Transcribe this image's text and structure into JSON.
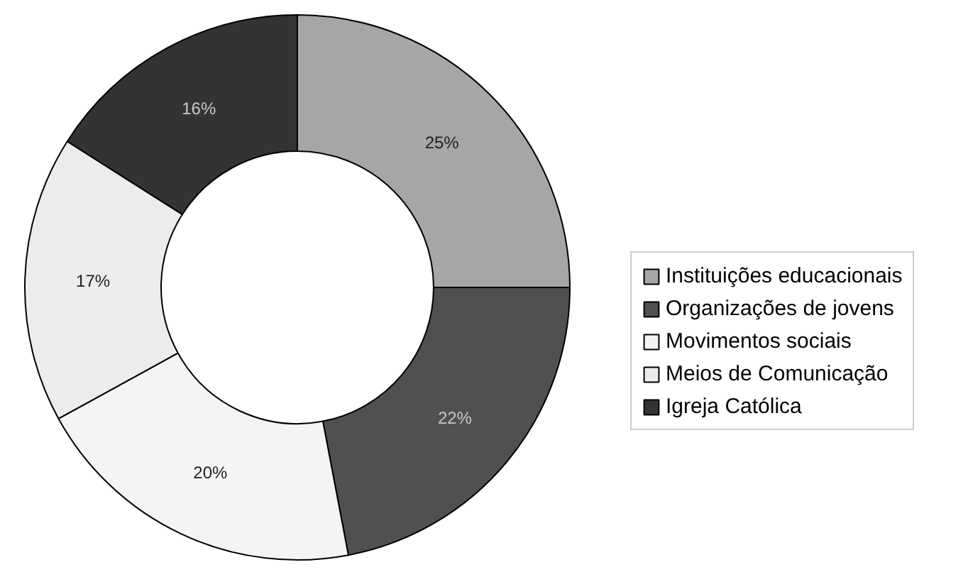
{
  "chart_data": {
    "type": "donut",
    "categories": [
      "Instituições educacionais",
      "Organizações de jovens",
      "Movimentos sociais",
      "Meios de Comunicação",
      "Igreja Católica"
    ],
    "values": [
      25,
      22,
      20,
      17,
      16
    ],
    "colors": [
      "#a6a6a6",
      "#505050",
      "#f4f4f4",
      "#ececec",
      "#333333"
    ],
    "value_labels": [
      "25%",
      "22%",
      "20%",
      "17%",
      "16%"
    ],
    "legend": "right"
  }
}
